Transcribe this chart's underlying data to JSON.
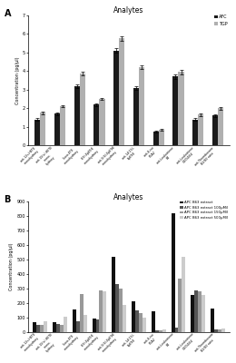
{
  "panel_A": {
    "title": "Analytes",
    "ylabel": "Concentration (pg/μl)",
    "legend_labels": [
      "AFC",
      "TGP"
    ],
    "legend_colors": [
      "#1a1a1a",
      "#b0b0b0"
    ],
    "categories": [
      "anti-12s-HETE\nmonohydroxy",
      "anti-15(s)-HETE\nmono-\nhydroxy",
      "5-oxo-ETE\nmonohydroxy",
      "8(9)-EpETrE\nmonohydroxy",
      "anti-5(6)-EpETrE\nmonohydroxy",
      "anti-14(15)-\nEpETrE",
      "anti-8-iso\nPGA2",
      "anti-Leukotriene\nB4",
      "anti-Leukotriene\nC4/D4/E4",
      "anti-Thromboxane\nB2/B3 ratio"
    ],
    "AFC": [
      1.4,
      1.7,
      3.2,
      2.2,
      5.1,
      3.1,
      0.75,
      3.7,
      1.4,
      1.6
    ],
    "TGP": [
      1.75,
      2.1,
      3.85,
      2.5,
      5.75,
      4.2,
      0.85,
      3.95,
      1.65,
      2.0
    ],
    "AFC_err": [
      0.06,
      0.06,
      0.1,
      0.07,
      0.12,
      0.09,
      0.04,
      0.12,
      0.06,
      0.06
    ],
    "TGP_err": [
      0.06,
      0.06,
      0.1,
      0.07,
      0.12,
      0.09,
      0.04,
      0.12,
      0.06,
      0.06
    ],
    "ylim": [
      0,
      7
    ],
    "yticks": [
      0,
      1,
      2,
      3,
      4,
      5,
      6,
      7
    ],
    "label": "A"
  },
  "panel_B": {
    "title": "Analytes",
    "ylabel": "Concentration (pg/μl)",
    "legend_labels": [
      "APC B63 extract",
      "APC B63 extract 100μM/I",
      "APC B63 extract 150μM/I",
      "APC B63 extract 500μM/I"
    ],
    "legend_colors": [
      "#111111",
      "#555555",
      "#999999",
      "#cccccc"
    ],
    "categories": [
      "anti-12s-HETE\nmonohydroxy",
      "anti-15(s)-HETE\nmono-\nhydroxy",
      "5-oxo-ETE\nmonohydroxy",
      "8(9)-EpETrE\nmonohydroxy",
      "anti-5(6)-EpETrE\nmonohydroxy",
      "anti-14(15)-\nEpETrE",
      "anti-8-iso\nPGA2",
      "anti-Leukotriene\nB4",
      "anti-Leukotriene\nC4/D4/E4",
      "anti-Thromboxane\nB2/B3 ratio"
    ],
    "s1": [
      65,
      70,
      155,
      95,
      520,
      210,
      145,
      820,
      255,
      165
    ],
    "s2": [
      50,
      55,
      75,
      90,
      330,
      150,
      10,
      30,
      290,
      15
    ],
    "s3": [
      50,
      50,
      260,
      285,
      300,
      130,
      10,
      370,
      280,
      20
    ],
    "s4": [
      75,
      105,
      120,
      280,
      190,
      100,
      20,
      520,
      255,
      25
    ],
    "ylim": [
      0,
      900
    ],
    "yticks": [
      0,
      100,
      200,
      300,
      400,
      500,
      600,
      700,
      800,
      900
    ],
    "label": "B"
  }
}
